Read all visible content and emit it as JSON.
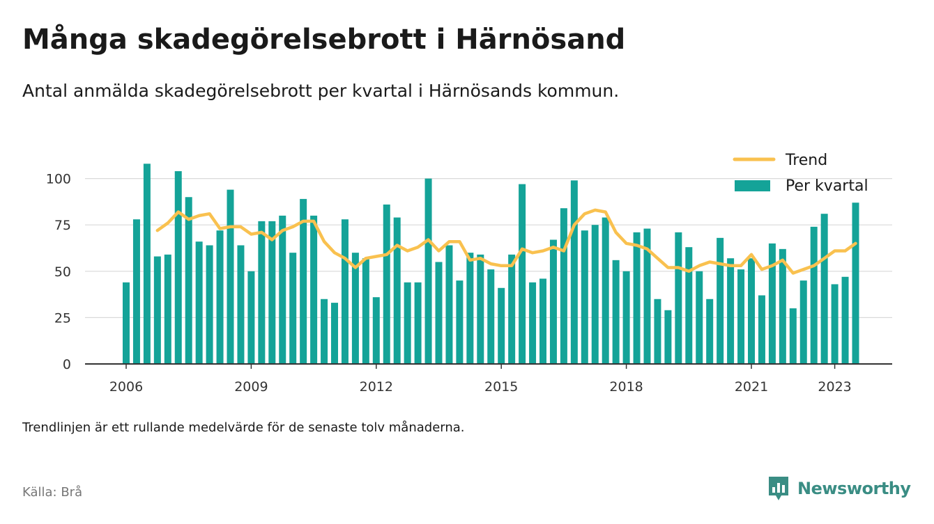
{
  "title": "Många skadegörelsebrott i Härnösand",
  "subtitle": "Antal anmälda skadegörelsebrott per kvartal i Härnösands kommun.",
  "note": "Trendlinjen är ett rullande medelvärde för de senaste tolv månaderna.",
  "source": "Källa: Brå",
  "brand": "Newsworthy",
  "colors": {
    "bar": "#14a398",
    "trend": "#f9c14f",
    "grid": "#d9d9d9",
    "axis": "#333333",
    "brand": "#3a8d84"
  },
  "chart_data": {
    "type": "bar",
    "ylim": [
      0,
      108
    ],
    "yticks": [
      0,
      25,
      50,
      75,
      100
    ],
    "xtick_labels": [
      "2006",
      "2009",
      "2012",
      "2015",
      "2018",
      "2021",
      "2023"
    ],
    "xtick_positions": [
      0,
      12,
      24,
      36,
      48,
      60,
      68
    ],
    "grid": true,
    "legend_position": "top-right",
    "series": [
      {
        "name": "Per kvartal",
        "values": [
          44,
          78,
          108,
          58,
          59,
          104,
          90,
          66,
          64,
          72,
          94,
          64,
          50,
          77,
          77,
          80,
          60,
          89,
          80,
          35,
          33,
          78,
          60,
          57,
          36,
          86,
          79,
          44,
          44,
          100,
          55,
          64,
          45,
          60,
          59,
          51,
          41,
          59,
          97,
          44,
          46,
          67,
          84,
          99,
          72,
          75,
          79,
          56,
          50,
          71,
          73,
          35,
          29,
          71,
          63,
          50,
          35,
          68,
          57,
          51,
          57,
          37,
          65,
          62,
          30,
          45,
          74,
          81,
          43,
          47,
          87
        ]
      },
      {
        "name": "Trend",
        "values": [
          null,
          null,
          null,
          72,
          76,
          82,
          78,
          80,
          81,
          73,
          74,
          74,
          70,
          71,
          67,
          72,
          74,
          77,
          77,
          66,
          60,
          57,
          52,
          57,
          58,
          59,
          64,
          61,
          63,
          67,
          61,
          66,
          66,
          56,
          57,
          54,
          53,
          53,
          62,
          60,
          61,
          63,
          61,
          75,
          81,
          83,
          82,
          71,
          65,
          64,
          62,
          57,
          52,
          52,
          50,
          53,
          55,
          54,
          53,
          53,
          59,
          51,
          53,
          56,
          49,
          51,
          53,
          57,
          61,
          61,
          65
        ]
      }
    ]
  }
}
